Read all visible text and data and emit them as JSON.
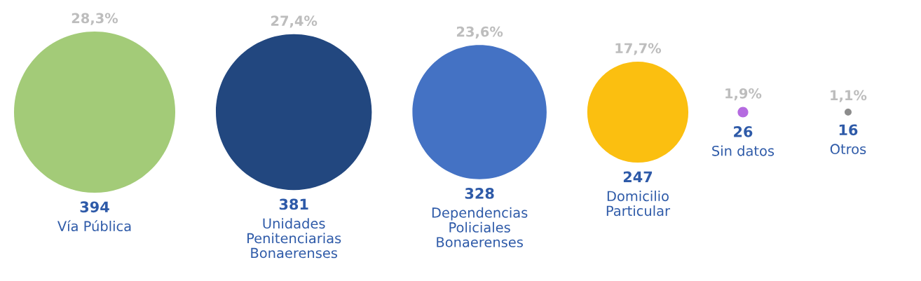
{
  "chart_data": {
    "type": "other",
    "categories": [
      "Vía Pública",
      "Unidades\nPenitenciarias\nBonaerenses",
      "Dependencias\nPoliciales\nBonaerenses",
      "Domicilio\nParticular",
      "Sin datos",
      "Otros"
    ],
    "values": [
      394,
      381,
      328,
      247,
      26,
      16
    ],
    "colors": [
      "#a3cb78",
      "#22477f",
      "#4472c4",
      "#fbbf10",
      "#b56be0",
      "#8c8c8c"
    ],
    "data_labels": true,
    "annotations": [
      {
        "text": "28,3%",
        "x": "Vía Pública"
      },
      {
        "text": "27,4%",
        "x": "Unidades\nPenitenciarias\nBonaerenses"
      },
      {
        "text": "23,6%",
        "x": "Dependencias\nPoliciales\nBonaerenses"
      },
      {
        "text": "17,7%",
        "x": "Domicilio\nParticular"
      },
      {
        "text": "1,9%",
        "x": "Sin datos"
      },
      {
        "text": "1,1%",
        "x": "Otros"
      }
    ]
  }
}
